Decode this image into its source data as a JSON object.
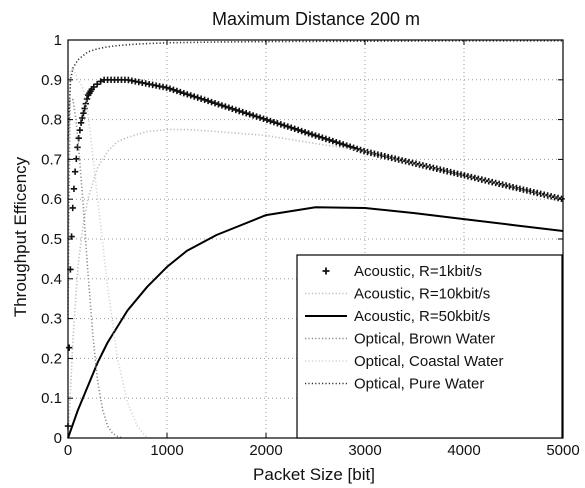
{
  "chart_data": {
    "type": "line",
    "title": "Maximum Distance 200 m",
    "xlabel": "Packet Size [bit]",
    "ylabel": "Throughput Efficency",
    "xlim": [
      0,
      5000
    ],
    "ylim": [
      0,
      1
    ],
    "xticks": [
      0,
      1000,
      2000,
      3000,
      4000,
      5000
    ],
    "yticks": [
      0,
      0.1,
      0.2,
      0.3,
      0.4,
      0.5,
      0.6,
      0.7,
      0.8,
      0.9,
      1
    ],
    "grid": true,
    "legend_position": "lower-right",
    "series": [
      {
        "name": "Acoustic, R=1kbit/s",
        "style": "plus-markers",
        "color": "#111111",
        "x": [
          0,
          25,
          50,
          75,
          100,
          130,
          160,
          200,
          250,
          300,
          350,
          400,
          500,
          600,
          700,
          800,
          1000,
          1500,
          2000,
          2500,
          3000,
          3500,
          4000,
          4500,
          5000
        ],
        "y": [
          0.03,
          0.44,
          0.59,
          0.68,
          0.74,
          0.79,
          0.82,
          0.86,
          0.88,
          0.89,
          0.9,
          0.9,
          0.9,
          0.9,
          0.895,
          0.89,
          0.88,
          0.84,
          0.8,
          0.76,
          0.72,
          0.69,
          0.66,
          0.63,
          0.6
        ]
      },
      {
        "name": "Acoustic, R=10kbit/s",
        "style": "dotted",
        "color": "#bdbdbd",
        "x": [
          0,
          25,
          50,
          100,
          150,
          200,
          300,
          400,
          500,
          600,
          800,
          1000,
          1200,
          1500,
          2000,
          2500,
          3000,
          3500,
          4000,
          4500,
          5000
        ],
        "y": [
          0,
          0.12,
          0.25,
          0.43,
          0.53,
          0.6,
          0.68,
          0.72,
          0.745,
          0.755,
          0.77,
          0.775,
          0.775,
          0.77,
          0.76,
          0.74,
          0.72,
          0.69,
          0.66,
          0.63,
          0.6
        ]
      },
      {
        "name": "Acoustic, R=50kbit/s",
        "style": "solid",
        "color": "#000000",
        "x": [
          0,
          100,
          200,
          300,
          400,
          500,
          600,
          800,
          1000,
          1200,
          1500,
          2000,
          2500,
          3000,
          3500,
          4000,
          4500,
          5000
        ],
        "y": [
          0,
          0.07,
          0.13,
          0.19,
          0.24,
          0.28,
          0.32,
          0.38,
          0.43,
          0.47,
          0.51,
          0.56,
          0.58,
          0.578,
          0.565,
          0.55,
          0.535,
          0.52
        ]
      },
      {
        "name": "Optical, Brown Water",
        "style": "dotted",
        "color": "#8a8a8a",
        "x": [
          0,
          20,
          50,
          80,
          100,
          150,
          200,
          250,
          300,
          350,
          400,
          450,
          500,
          550
        ],
        "y": [
          0.3,
          0.85,
          0.85,
          0.8,
          0.75,
          0.6,
          0.42,
          0.26,
          0.14,
          0.07,
          0.03,
          0.012,
          0.004,
          0
        ]
      },
      {
        "name": "Optical, Coastal Water",
        "style": "dotted",
        "color": "#d4d4d4",
        "x": [
          0,
          20,
          50,
          100,
          150,
          200,
          300,
          400,
          500,
          600,
          700,
          800
        ],
        "y": [
          0.5,
          0.92,
          0.93,
          0.9,
          0.88,
          0.82,
          0.6,
          0.38,
          0.2,
          0.09,
          0.03,
          0
        ]
      },
      {
        "name": "Optical, Pure Water",
        "style": "dotted",
        "color": "#333333",
        "x": [
          0,
          25,
          50,
          100,
          150,
          200,
          300,
          400,
          500,
          700,
          1000,
          1500,
          2000,
          3000,
          4000,
          5000
        ],
        "y": [
          0.75,
          0.9,
          0.93,
          0.95,
          0.96,
          0.97,
          0.978,
          0.983,
          0.986,
          0.99,
          0.993,
          0.995,
          0.996,
          0.997,
          0.998,
          0.998
        ]
      }
    ]
  }
}
